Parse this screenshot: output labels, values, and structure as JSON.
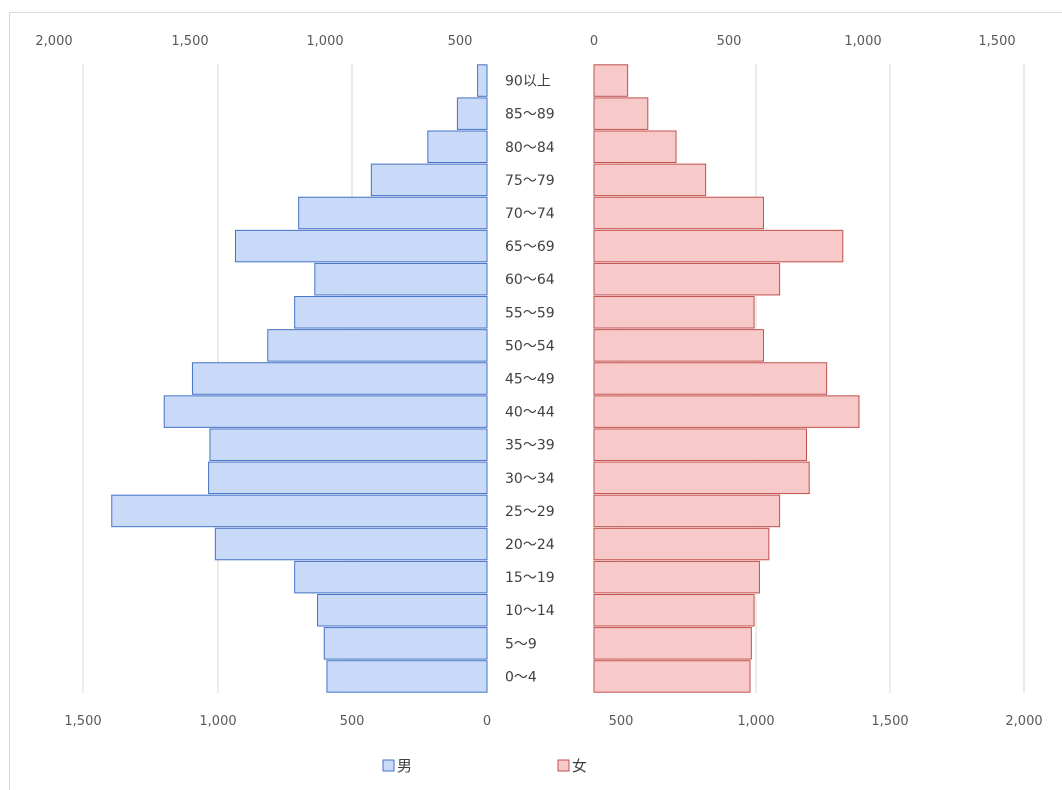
{
  "chart_data": {
    "type": "bar",
    "orientation": "horizontal",
    "layout": "population-pyramid",
    "categories": [
      "0〜4",
      "5〜9",
      "10〜14",
      "15〜19",
      "20〜24",
      "25〜29",
      "30〜34",
      "35〜39",
      "40〜44",
      "45〜49",
      "50〜54",
      "55〜59",
      "60〜64",
      "65〜69",
      "70〜74",
      "75〜79",
      "80〜84",
      "85〜89",
      "90以上"
    ],
    "series": [
      {
        "name": "男",
        "color": "#c9daf8",
        "stroke": "#4472c4",
        "values": [
          595,
          605,
          630,
          715,
          1010,
          1395,
          1035,
          1030,
          1200,
          1095,
          815,
          715,
          640,
          935,
          700,
          430,
          220,
          110,
          35
        ]
      },
      {
        "name": "女",
        "color": "#f8c9c9",
        "stroke": "#c0504d",
        "values": [
          580,
          585,
          595,
          615,
          650,
          690,
          800,
          790,
          985,
          865,
          630,
          595,
          690,
          925,
          630,
          415,
          305,
          200,
          125
        ]
      }
    ],
    "left_top_ticks": [
      "2,000",
      "1,500",
      "1,000",
      "500"
    ],
    "left_bottom_ticks": [
      "1,500",
      "1,000",
      "500",
      "0"
    ],
    "right_top_ticks": [
      "0",
      "500",
      "1,000",
      "1,500"
    ],
    "right_bottom_ticks": [
      "500",
      "1,000",
      "1,500",
      "2,000"
    ],
    "legend_position": "bottom",
    "grid": true
  }
}
